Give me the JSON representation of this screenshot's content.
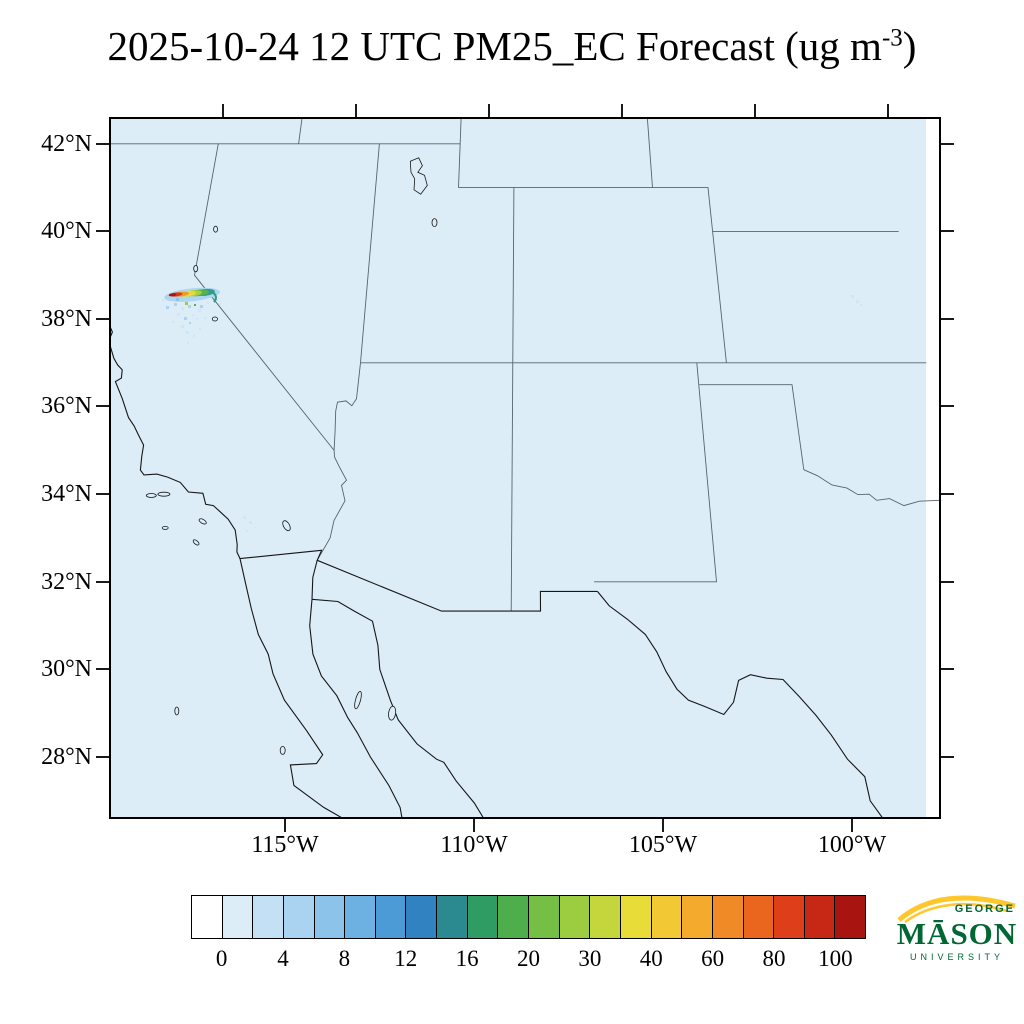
{
  "title": {
    "text": "2025-10-24 12 UTC PM25_EC Forecast (ug m",
    "exponent": "-3",
    "close": ")"
  },
  "axes": {
    "lat_labels": [
      "42°N",
      "40°N",
      "38°N",
      "36°N",
      "34°N",
      "32°N",
      "30°N",
      "28°N"
    ],
    "lon_labels": [
      "115°W",
      "110°W",
      "105°W",
      "100°W"
    ]
  },
  "colorbar": {
    "tick_labels": [
      "0",
      "4",
      "8",
      "12",
      "16",
      "20",
      "30",
      "40",
      "60",
      "80",
      "100"
    ],
    "colors": [
      "#ffffff",
      "#dcedf8",
      "#c3e0f4",
      "#a9d3f0",
      "#8cc3ea",
      "#6db1e2",
      "#4c9bd6",
      "#3182c0",
      "#2a8a8f",
      "#2f9d63",
      "#4fae4c",
      "#74bf44",
      "#9ccc3f",
      "#c4d63c",
      "#e8dc39",
      "#f2c835",
      "#f3aa2d",
      "#f08a26",
      "#ea661f",
      "#de3f1a",
      "#c62815",
      "#a81410"
    ]
  },
  "map": {
    "background": "#dcedf8",
    "nodata": "#ffffff",
    "state_line": "#54656f",
    "coast_line": "#161616"
  },
  "logo": {
    "top": "GEORGE",
    "name": "MĀSON",
    "bottom": "UNIVERSITY",
    "green": "#006633",
    "gold": "#ffc72c"
  },
  "chart_data": {
    "type": "map",
    "title": "2025-10-24 12 UTC PM25_EC Forecast (ug m-3)",
    "variable": "PM25_EC",
    "units": "ug m-3",
    "valid_time": "2025-10-24 12 UTC",
    "lat_ticks_deg_north": [
      42,
      40,
      38,
      36,
      34,
      32,
      30,
      28
    ],
    "lon_ticks_deg_west": [
      115,
      110,
      105,
      100
    ],
    "colorbar_levels_labeled": [
      0,
      4,
      8,
      12,
      16,
      20,
      30,
      40,
      60,
      80,
      100
    ],
    "features": [
      {
        "name": "plume",
        "approx_lat": 38.5,
        "approx_lon": -120.2,
        "description": "narrow east-west smoke/EC plume near the California–Nevada border with core values exceeding 100, dispersing in light-blue speckles to the south-southeast"
      },
      {
        "name": "background",
        "description": "most of the domain at lowest nonzero category (pale blue, ~0–2)"
      },
      {
        "name": "no-data-strip",
        "description": "white vertical band at the far right edge of the domain"
      }
    ]
  }
}
